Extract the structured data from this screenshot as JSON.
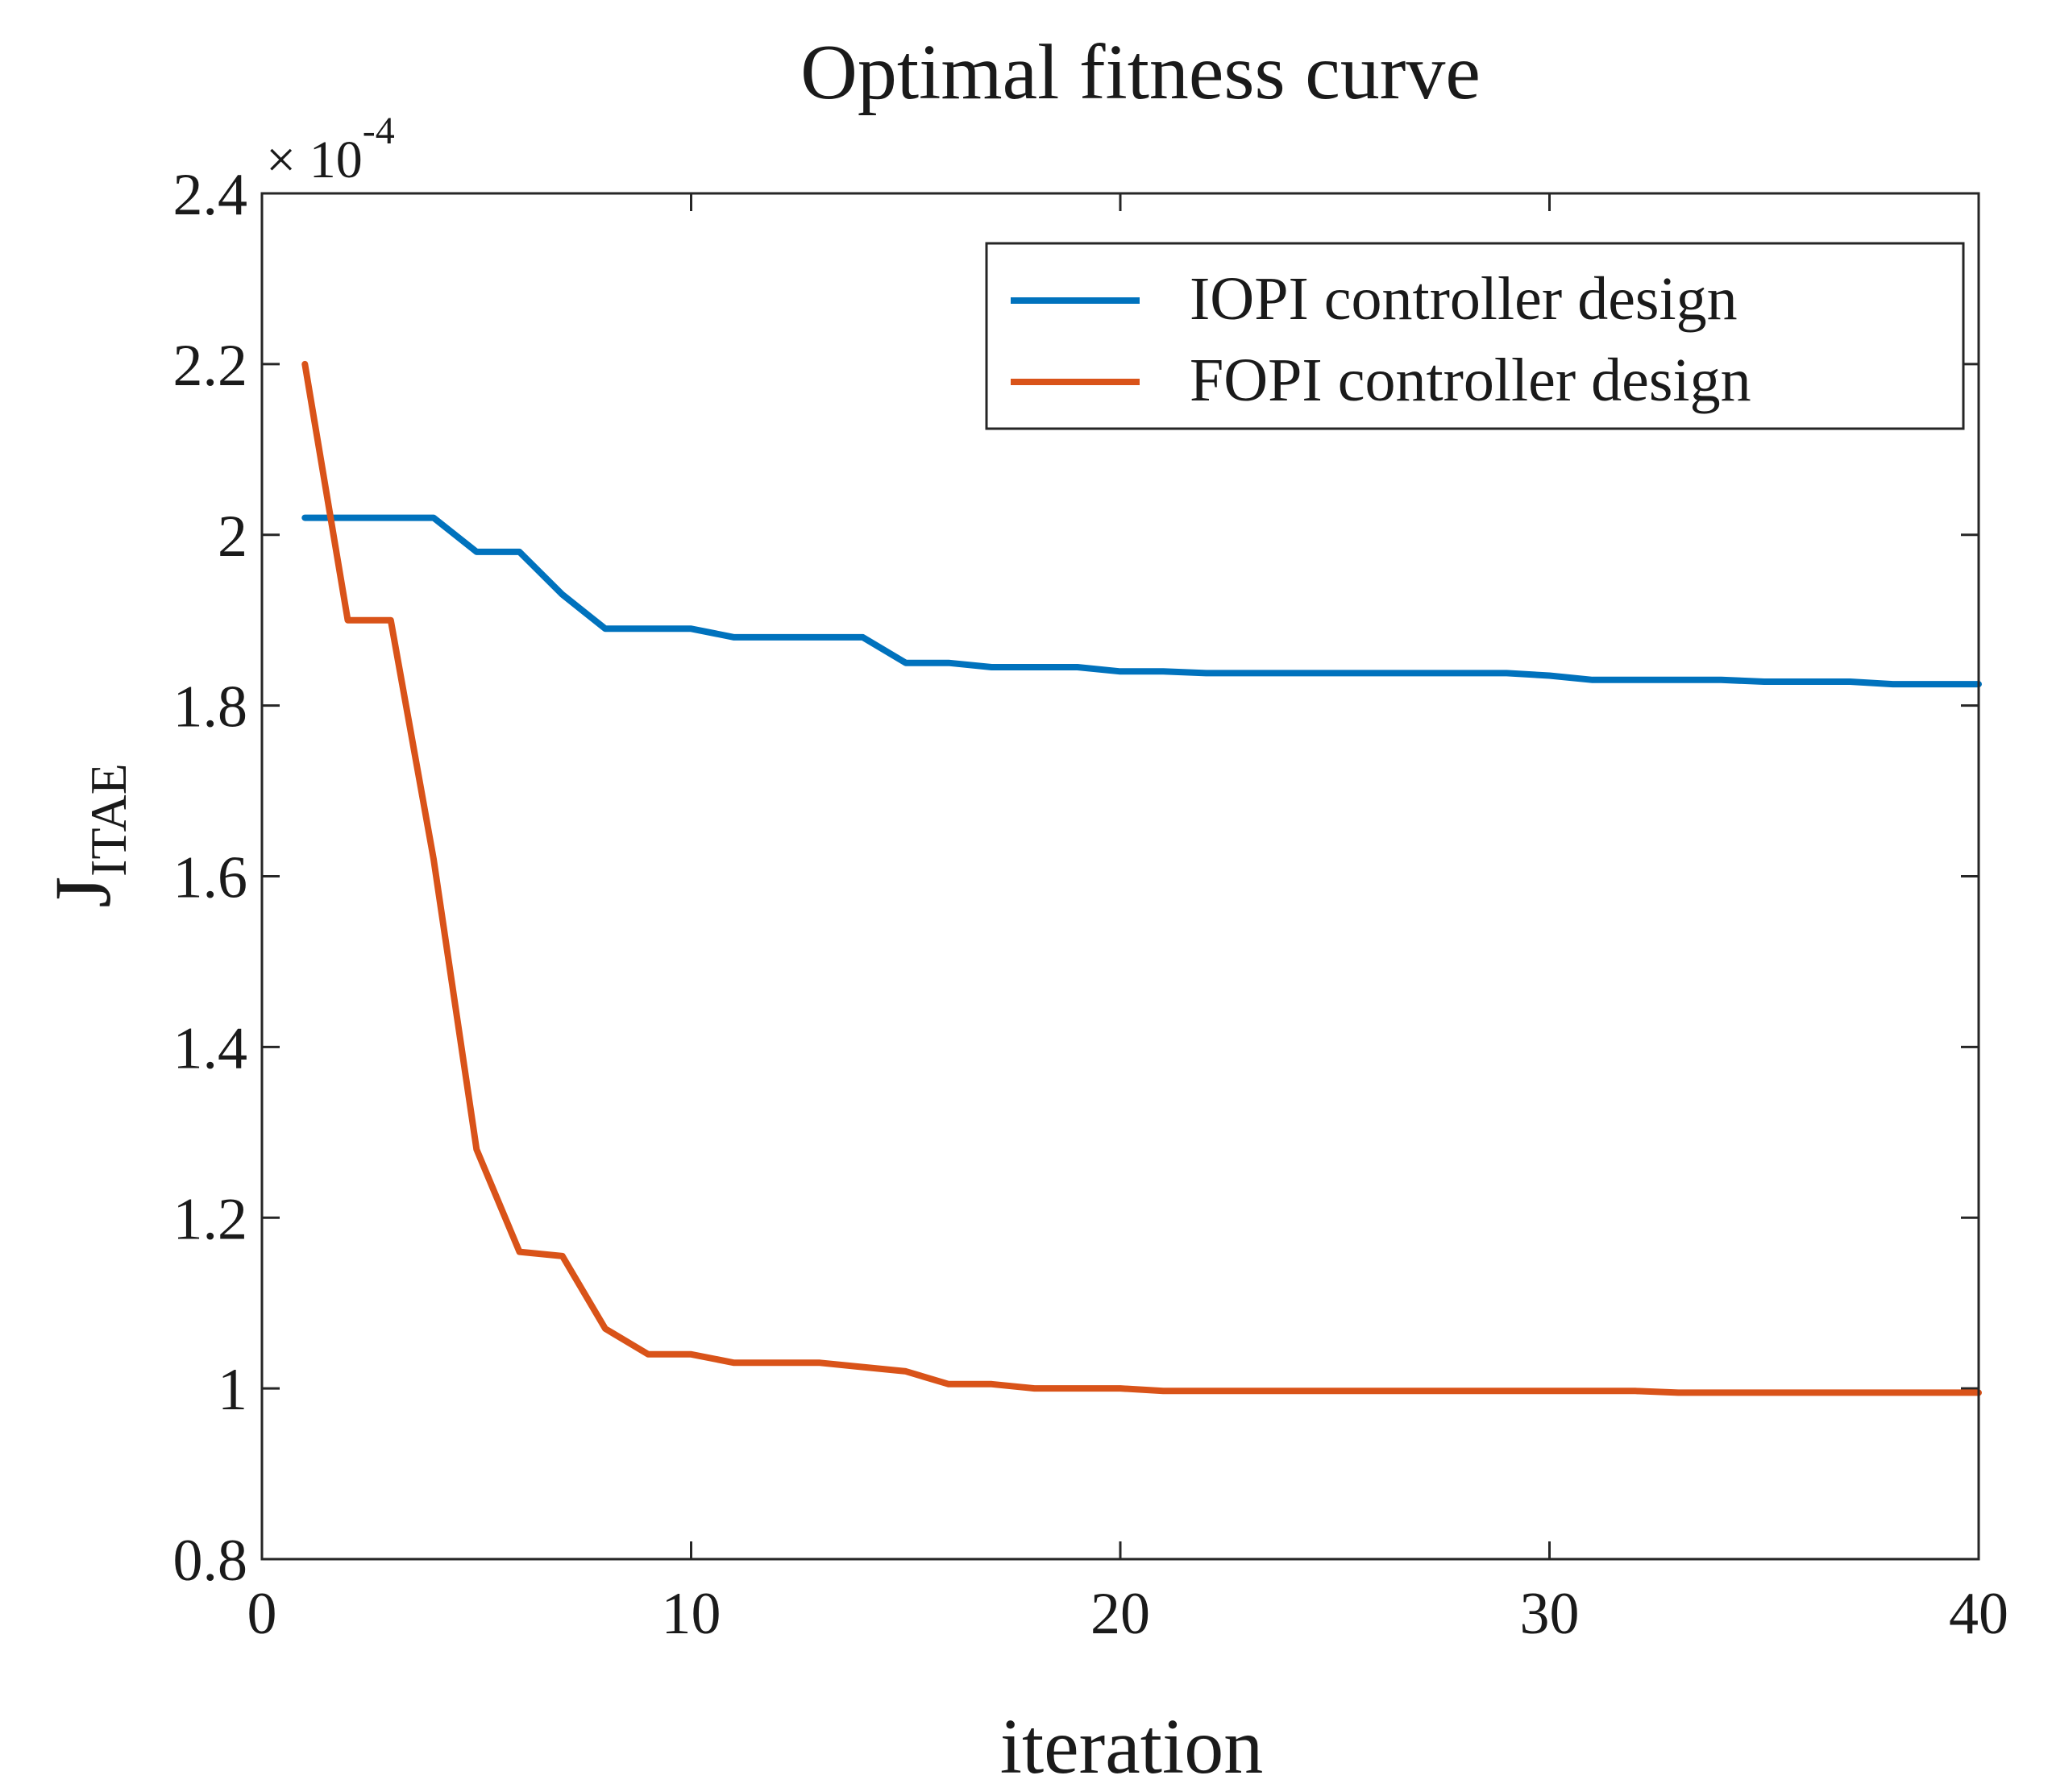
{
  "chart_data": {
    "type": "line",
    "title": "Optimal fitness curve",
    "xlabel": "iteration",
    "ylabel_main": "J",
    "ylabel_sub": "ITAE",
    "exponent_label": "× 10",
    "exponent_power": "-4",
    "xlim": [
      0,
      40
    ],
    "ylim": [
      0.8,
      2.4
    ],
    "x_ticks": [
      0,
      10,
      20,
      30,
      40
    ],
    "x_tick_labels": [
      "0",
      "10",
      "20",
      "30",
      "40"
    ],
    "y_ticks": [
      0.8,
      1.0,
      1.2,
      1.4,
      1.6,
      1.8,
      2.0,
      2.2,
      2.4
    ],
    "y_tick_labels": [
      "0.8",
      "1",
      "1.2",
      "1.4",
      "1.6",
      "1.8",
      "2",
      "2.2",
      "2.4"
    ],
    "grid": false,
    "legend_position": "top-right",
    "x": [
      1,
      2,
      3,
      4,
      5,
      6,
      7,
      8,
      9,
      10,
      11,
      12,
      13,
      14,
      15,
      16,
      17,
      18,
      19,
      20,
      21,
      22,
      23,
      24,
      25,
      26,
      27,
      28,
      29,
      30,
      31,
      32,
      33,
      34,
      35,
      36,
      37,
      38,
      39,
      40
    ],
    "series": [
      {
        "name": "IOPI controller design",
        "color": "#0072BD",
        "values": [
          2.02,
          2.02,
          2.02,
          2.02,
          1.98,
          1.98,
          1.93,
          1.89,
          1.89,
          1.89,
          1.88,
          1.88,
          1.88,
          1.88,
          1.85,
          1.85,
          1.845,
          1.845,
          1.845,
          1.84,
          1.84,
          1.838,
          1.838,
          1.838,
          1.838,
          1.838,
          1.838,
          1.838,
          1.838,
          1.835,
          1.83,
          1.83,
          1.83,
          1.83,
          1.828,
          1.828,
          1.828,
          1.825,
          1.825,
          1.825
        ]
      },
      {
        "name": "FOPI controller design",
        "color": "#D95319",
        "values": [
          2.2,
          1.9,
          1.9,
          1.62,
          1.28,
          1.16,
          1.155,
          1.07,
          1.04,
          1.04,
          1.03,
          1.03,
          1.03,
          1.025,
          1.02,
          1.005,
          1.005,
          1.0,
          1.0,
          1.0,
          0.997,
          0.997,
          0.997,
          0.997,
          0.997,
          0.997,
          0.997,
          0.997,
          0.997,
          0.997,
          0.997,
          0.997,
          0.995,
          0.995,
          0.995,
          0.995,
          0.995,
          0.995,
          0.995,
          0.995
        ]
      }
    ]
  }
}
